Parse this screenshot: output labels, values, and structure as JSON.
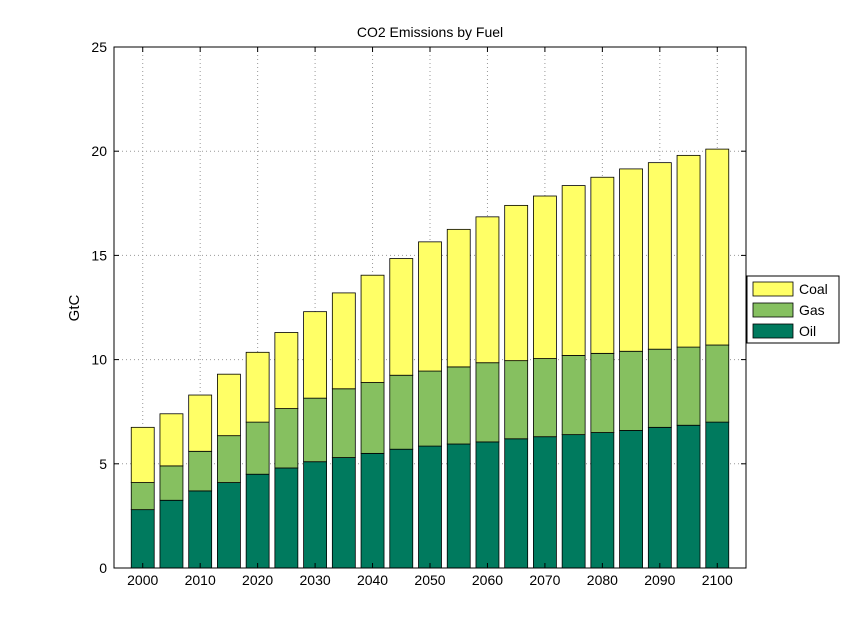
{
  "chart_data": {
    "type": "bar",
    "stacked": true,
    "title": "CO2 Emissions by Fuel",
    "xlabel": "",
    "ylabel": "GtC",
    "ylim": [
      0,
      25
    ],
    "xlim": [
      1995,
      2105
    ],
    "yticks": [
      0,
      5,
      10,
      15,
      20,
      25
    ],
    "xticks": [
      2000,
      2010,
      2020,
      2030,
      2040,
      2050,
      2060,
      2070,
      2080,
      2090,
      2100
    ],
    "grid": true,
    "legend_position": "right",
    "x": [
      2000,
      2005,
      2010,
      2015,
      2020,
      2025,
      2030,
      2035,
      2040,
      2045,
      2050,
      2055,
      2060,
      2065,
      2070,
      2075,
      2080,
      2085,
      2090,
      2095,
      2100
    ],
    "series": [
      {
        "name": "Oil",
        "color": "#007A5E",
        "values": [
          2.8,
          3.25,
          3.7,
          4.1,
          4.5,
          4.8,
          5.1,
          5.3,
          5.5,
          5.7,
          5.85,
          5.95,
          6.05,
          6.2,
          6.3,
          6.4,
          6.5,
          6.6,
          6.75,
          6.85,
          7.0
        ]
      },
      {
        "name": "Gas",
        "color": "#86C060",
        "values": [
          1.3,
          1.65,
          1.9,
          2.25,
          2.5,
          2.85,
          3.05,
          3.3,
          3.4,
          3.55,
          3.6,
          3.7,
          3.8,
          3.75,
          3.75,
          3.8,
          3.8,
          3.8,
          3.75,
          3.75,
          3.7
        ]
      },
      {
        "name": "Coal",
        "color": "#FFFF66",
        "values": [
          2.65,
          2.5,
          2.7,
          2.95,
          3.35,
          3.65,
          4.15,
          4.6,
          5.15,
          5.6,
          6.2,
          6.6,
          7.0,
          7.45,
          7.8,
          8.15,
          8.45,
          8.75,
          8.95,
          9.2,
          9.4
        ]
      }
    ]
  }
}
